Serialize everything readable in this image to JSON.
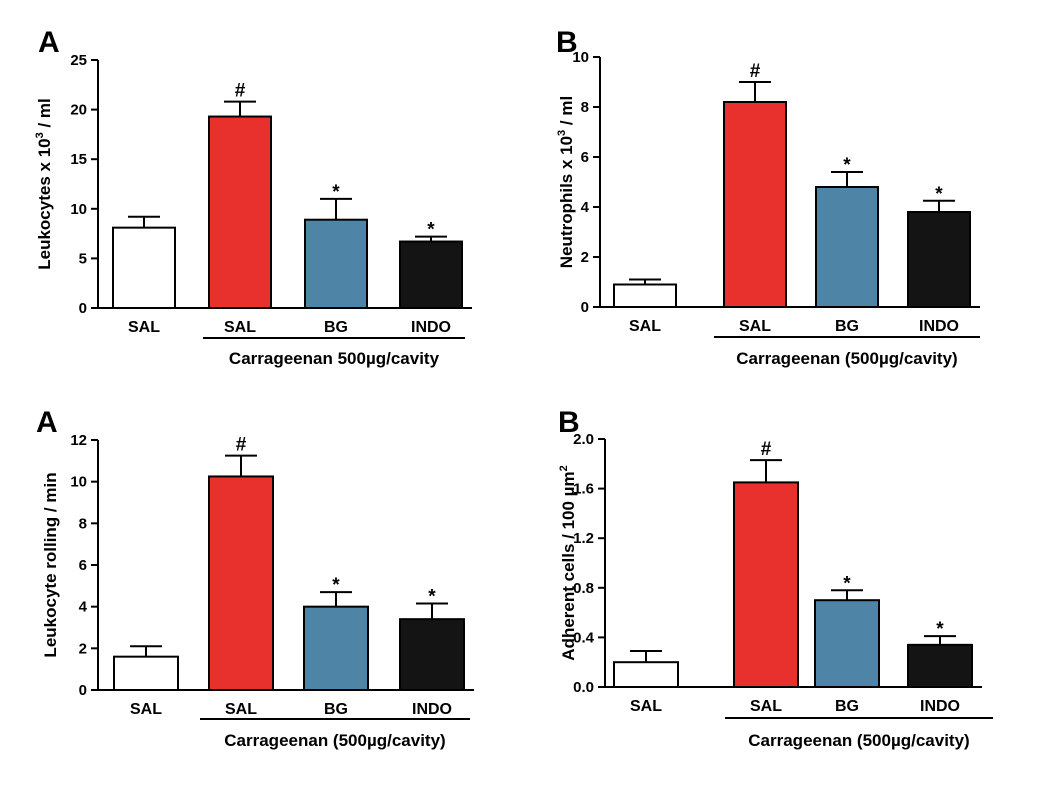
{
  "colors": {
    "SAL_control": "#ffffff",
    "SAL": "#e8312c",
    "BG": "#4e85a6",
    "INDO": "#141414",
    "stroke": "#000000"
  },
  "chart_data": [
    {
      "type": "bar",
      "panel_label": "A",
      "ylabel_main": "Leukocytes x 10",
      "ylabel_sup": "3",
      "ylabel_tail": " / ml",
      "ylim": [
        0,
        25
      ],
      "yticks": [
        0,
        5,
        10,
        15,
        20,
        25
      ],
      "categories": [
        "SAL",
        "SAL",
        "BG",
        "INDO"
      ],
      "fill_keys": [
        "SAL_control",
        "SAL",
        "BG",
        "INDO"
      ],
      "values": [
        8.1,
        19.3,
        8.9,
        6.7
      ],
      "errors": [
        1.1,
        1.5,
        2.1,
        0.5
      ],
      "annotations": [
        "",
        "#",
        "*",
        "*"
      ],
      "group_label": "Carrageenan 500µg/cavity"
    },
    {
      "type": "bar",
      "panel_label": "B",
      "ylabel_main": "Neutrophils x 10",
      "ylabel_sup": "3",
      "ylabel_tail": " / ml",
      "ylim": [
        0,
        10
      ],
      "yticks": [
        0,
        2,
        4,
        6,
        8,
        10
      ],
      "categories": [
        "SAL",
        "SAL",
        "BG",
        "INDO"
      ],
      "fill_keys": [
        "SAL_control",
        "SAL",
        "BG",
        "INDO"
      ],
      "values": [
        0.9,
        8.2,
        4.8,
        3.8
      ],
      "errors": [
        0.2,
        0.8,
        0.6,
        0.45
      ],
      "annotations": [
        "",
        "#",
        "*",
        "*"
      ],
      "group_label": "Carrageenan (500µg/cavity)"
    },
    {
      "type": "bar",
      "panel_label": "A",
      "ylabel_main": "Leukocyte rolling / min",
      "ylabel_sup": "",
      "ylabel_tail": "",
      "ylim": [
        0,
        12
      ],
      "yticks": [
        0,
        2,
        4,
        6,
        8,
        10,
        12
      ],
      "categories": [
        "SAL",
        "SAL",
        "BG",
        "INDO"
      ],
      "fill_keys": [
        "SAL_control",
        "SAL",
        "BG",
        "INDO"
      ],
      "values": [
        1.6,
        10.25,
        4.0,
        3.4
      ],
      "errors": [
        0.5,
        1.0,
        0.7,
        0.75
      ],
      "annotations": [
        "",
        "#",
        "*",
        "*"
      ],
      "group_label": "Carrageenan (500µg/cavity)"
    },
    {
      "type": "bar",
      "panel_label": "B",
      "ylabel_main": "Adherent cells / 100 µm",
      "ylabel_sup": "2",
      "ylabel_tail": "",
      "ylim": [
        0,
        2.0
      ],
      "yticks": [
        "0.0",
        "0.4",
        "0.8",
        "1.2",
        "1.6",
        "2.0"
      ],
      "categories": [
        "SAL",
        "SAL",
        "BG",
        "INDO"
      ],
      "fill_keys": [
        "SAL_control",
        "SAL",
        "BG",
        "INDO"
      ],
      "values": [
        0.2,
        1.65,
        0.7,
        0.34
      ],
      "errors": [
        0.09,
        0.18,
        0.08,
        0.07
      ],
      "annotations": [
        "",
        "#",
        "*",
        "*"
      ],
      "group_label": "Carrageenan (500µg/cavity)"
    }
  ]
}
